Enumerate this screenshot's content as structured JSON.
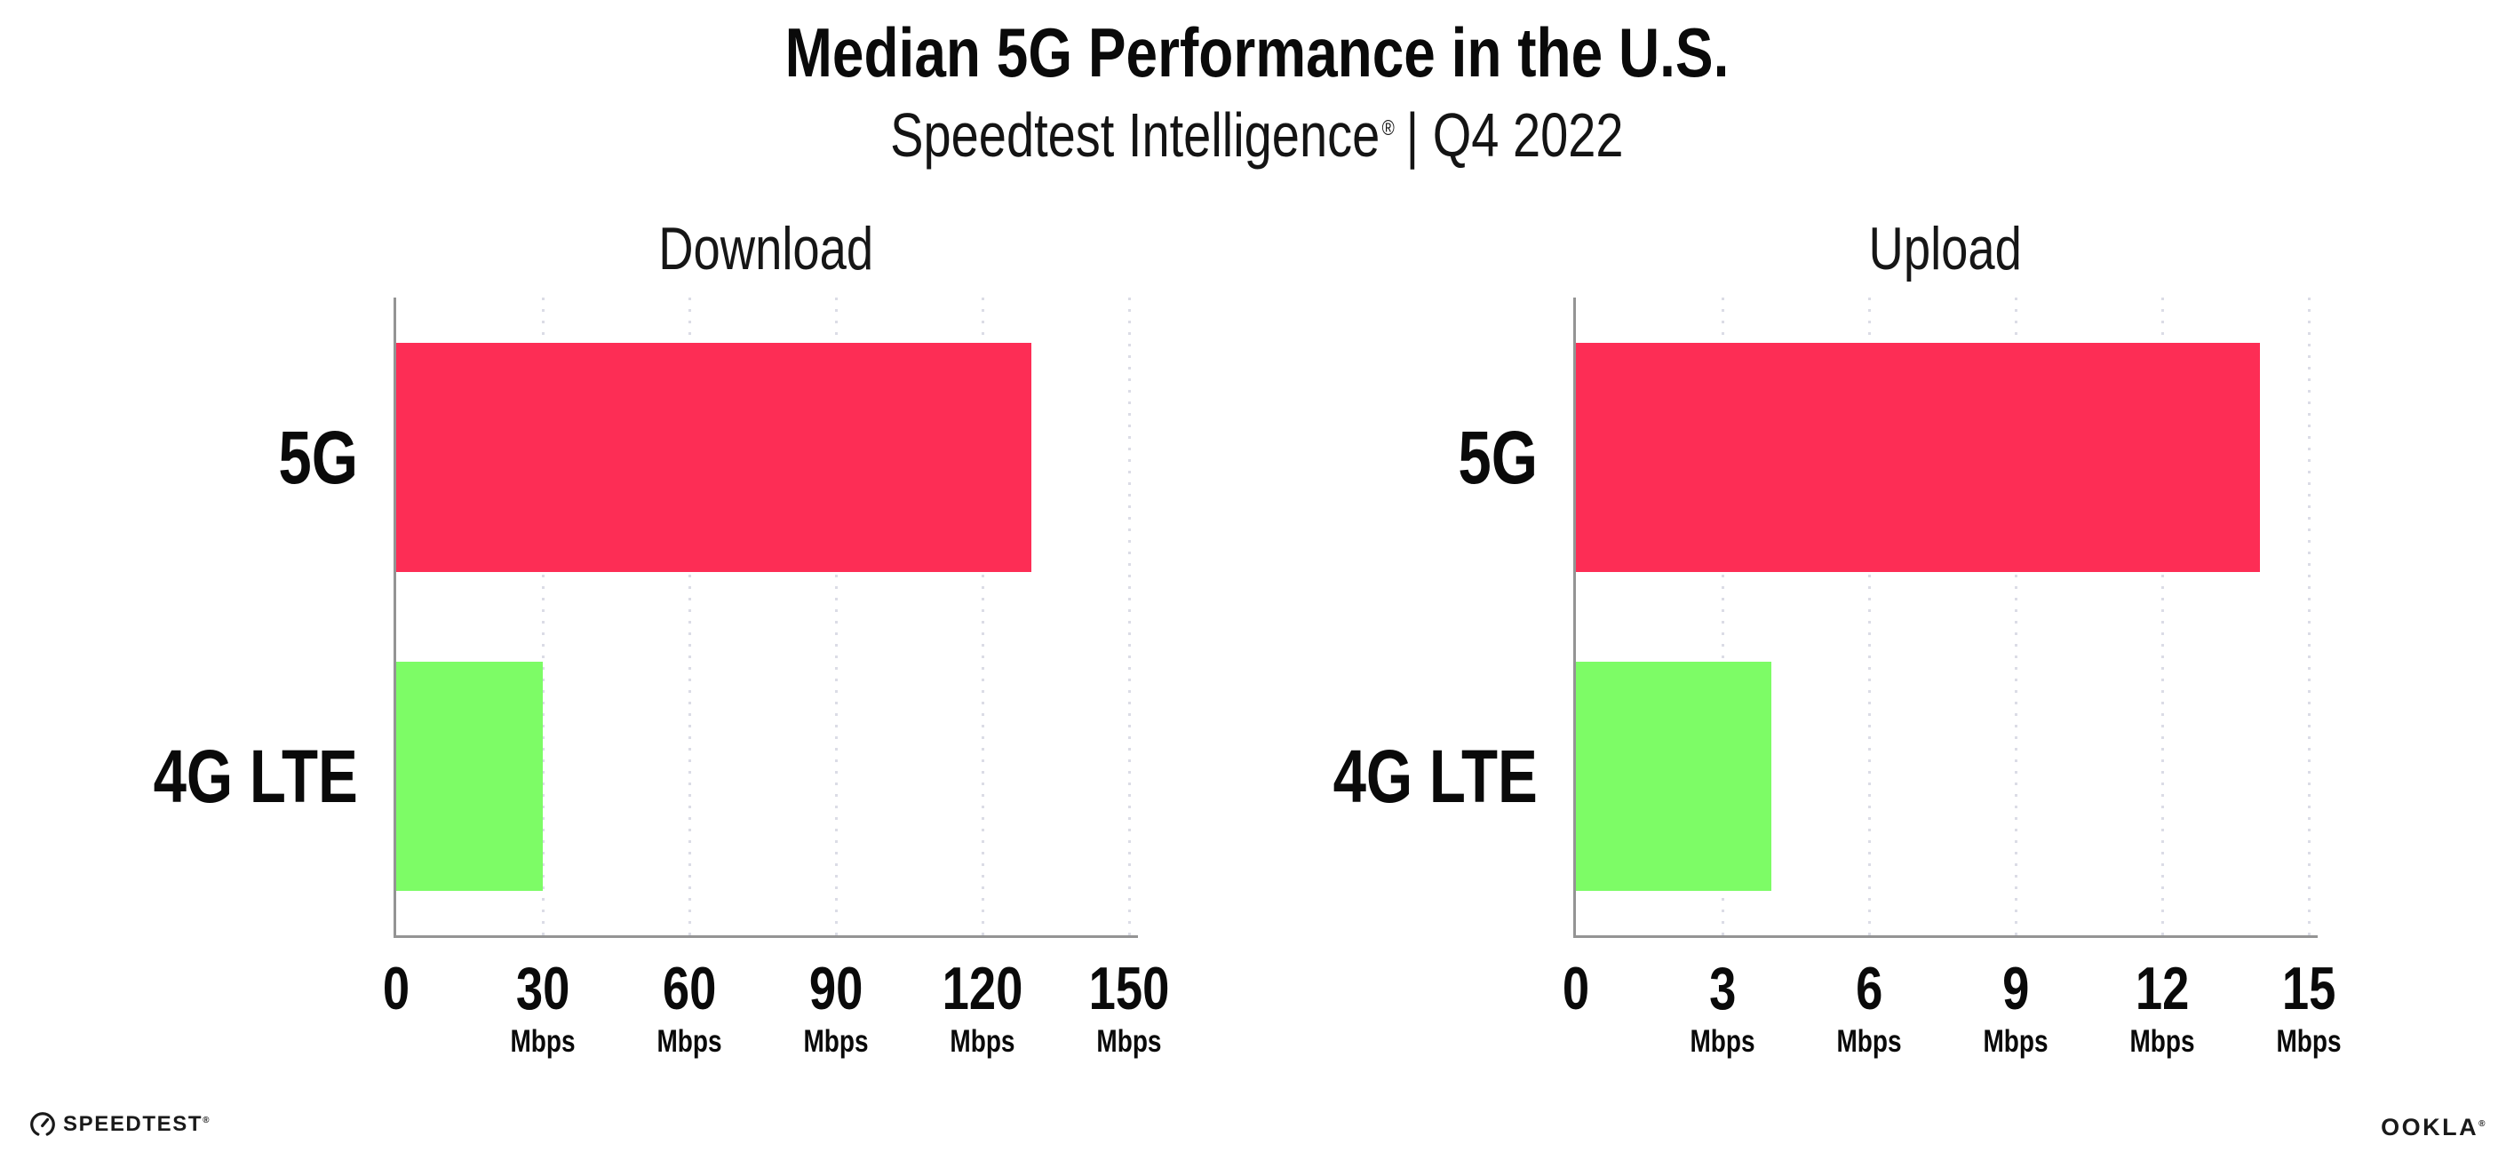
{
  "header": {
    "title": "Median 5G Performance in the U.S.",
    "subtitle_brand": "Speedtest Intelligence",
    "subtitle_reg": "®",
    "subtitle_rest": "| Q4 2022"
  },
  "colors": {
    "series": [
      "#FD2D55",
      "#7DFC66"
    ],
    "axis": "#949494",
    "gridline": "#dbdce6",
    "text": "#0a0a0a"
  },
  "chart_data": [
    {
      "type": "bar",
      "orientation": "horizontal",
      "title": "Download",
      "categories": [
        "5G",
        "4G LTE"
      ],
      "values": [
        130,
        30
      ],
      "unit": "Mbps",
      "xlim": [
        0,
        150
      ],
      "xticks": [
        0,
        30,
        60,
        90,
        120,
        150
      ],
      "tick_unit": "Mbps",
      "grid": "dotted-vertical",
      "legend": "none"
    },
    {
      "type": "bar",
      "orientation": "horizontal",
      "title": "Upload",
      "categories": [
        "5G",
        "4G LTE"
      ],
      "values": [
        14,
        4
      ],
      "unit": "Mbps",
      "xlim": [
        0,
        15
      ],
      "xticks": [
        0,
        3,
        6,
        9,
        12,
        15
      ],
      "tick_unit": "Mbps",
      "grid": "dotted-vertical",
      "legend": "none"
    }
  ],
  "footer": {
    "speedtest_label": "SPEEDTEST",
    "speedtest_mark": "®",
    "ookla_label": "OOKLA",
    "ookla_mark": "®"
  }
}
